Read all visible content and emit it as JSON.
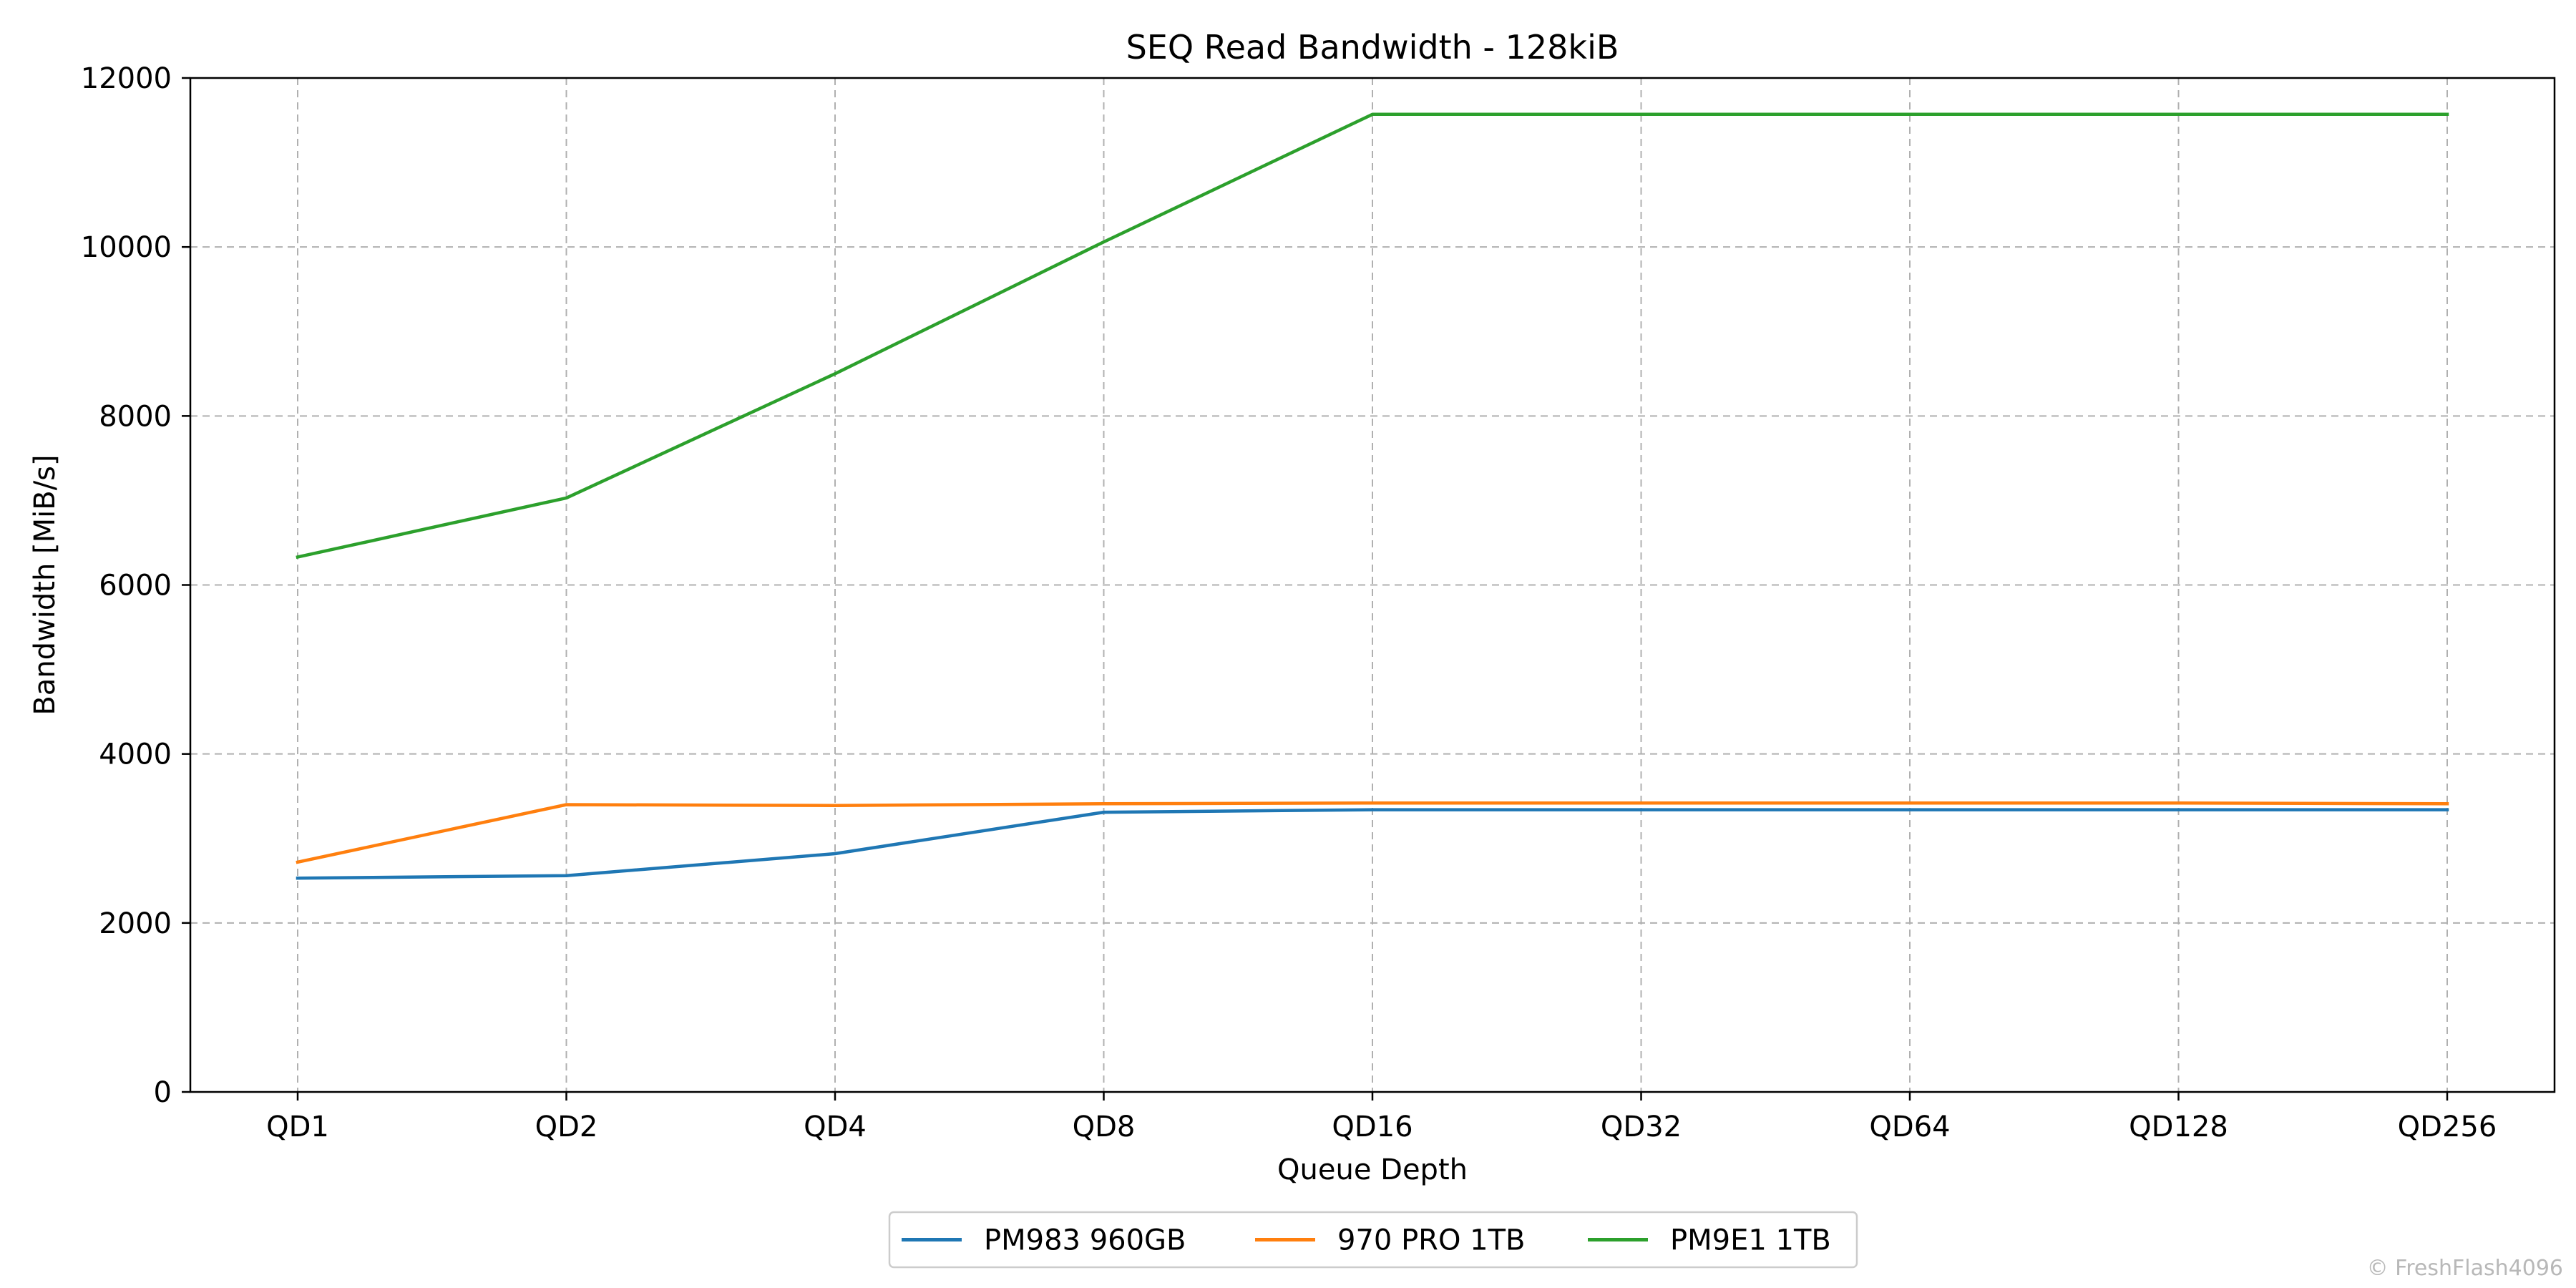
{
  "watermark": "© FreshFlash4096",
  "chart_data": {
    "type": "line",
    "title": "SEQ Read Bandwidth - 128kiB",
    "xlabel": "Queue Depth",
    "ylabel": "Bandwidth [MiB/s]",
    "categories": [
      "QD1",
      "QD2",
      "QD4",
      "QD8",
      "QD16",
      "QD32",
      "QD64",
      "QD128",
      "QD256"
    ],
    "ylim": [
      0,
      12000
    ],
    "yticks": [
      0,
      2000,
      4000,
      6000,
      8000,
      10000,
      12000
    ],
    "grid": true,
    "legend_position": "bottom-center",
    "series": [
      {
        "name": "PM983 960GB",
        "color": "#1f77b4",
        "values": [
          2530,
          2560,
          2820,
          3310,
          3340,
          3340,
          3340,
          3340,
          3340
        ]
      },
      {
        "name": "970 PRO 1TB",
        "color": "#ff7f0e",
        "values": [
          2720,
          3400,
          3390,
          3410,
          3420,
          3420,
          3420,
          3420,
          3410
        ]
      },
      {
        "name": "PM9E1 1TB",
        "color": "#2ca02c",
        "values": [
          6330,
          7030,
          8500,
          10060,
          11570,
          11570,
          11570,
          11570,
          11570
        ]
      }
    ]
  }
}
